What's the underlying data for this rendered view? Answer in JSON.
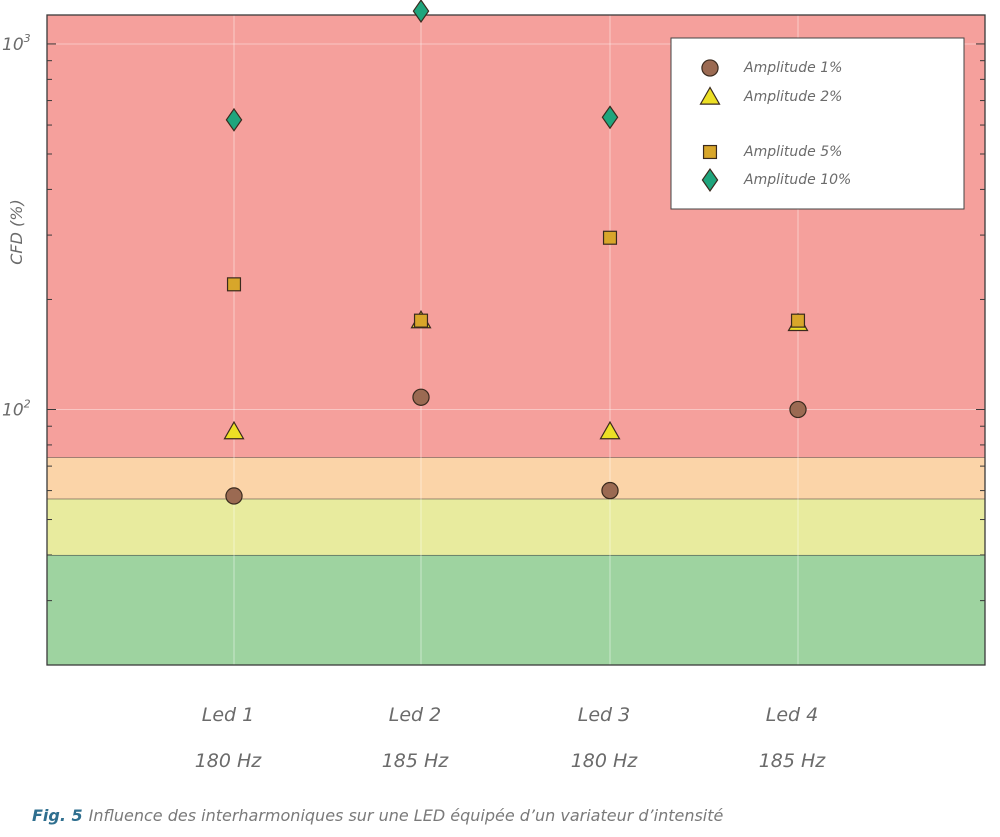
{
  "chart_data": {
    "type": "scatter",
    "title": "",
    "xlabel": "",
    "ylabel": "CFD (%)",
    "yscale": "log",
    "ylim": [
      20,
      1200
    ],
    "y_ticks": [
      {
        "value": 100,
        "base": "10",
        "exp": "2"
      },
      {
        "value": 1000,
        "base": "10",
        "exp": "3"
      }
    ],
    "categories": [
      {
        "name": "Led 1",
        "freq": "180 Hz"
      },
      {
        "name": "Led 2",
        "freq": "185 Hz"
      },
      {
        "name": "Led 3",
        "freq": "180 Hz"
      },
      {
        "name": "Led 4",
        "freq": "185 Hz"
      }
    ],
    "bands": [
      {
        "from": 20,
        "to": 40,
        "color": "#9ed3a0",
        "label": "green"
      },
      {
        "from": 40,
        "to": 57,
        "color": "#e8eb9e",
        "label": "yellow"
      },
      {
        "from": 57,
        "to": 74,
        "color": "#fbd4a8",
        "label": "orange"
      },
      {
        "from": 74,
        "to": 1200,
        "color": "#f5a09c",
        "label": "red"
      }
    ],
    "series": [
      {
        "name": "Amplitude 1%",
        "marker": "circle",
        "color": "#9b6a52",
        "values": [
          58,
          108,
          60,
          100
        ]
      },
      {
        "name": "Amplitude 2%",
        "marker": "triangle",
        "color": "#ecdf25",
        "values": [
          87,
          175,
          87,
          172
        ]
      },
      {
        "name": "Amplitude 5%",
        "marker": "square",
        "color": "#d8a62a",
        "values": [
          220,
          175,
          295,
          175
        ]
      },
      {
        "name": "Amplitude 10%",
        "marker": "diamond",
        "color": "#1fa57d",
        "values": [
          620,
          1230,
          630,
          null
        ]
      }
    ],
    "legend_position": "top-right"
  },
  "caption": {
    "label": "Fig. 5",
    "text": "Influence des interharmoniques sur une LED équipée d’un variateur d’intensité"
  }
}
